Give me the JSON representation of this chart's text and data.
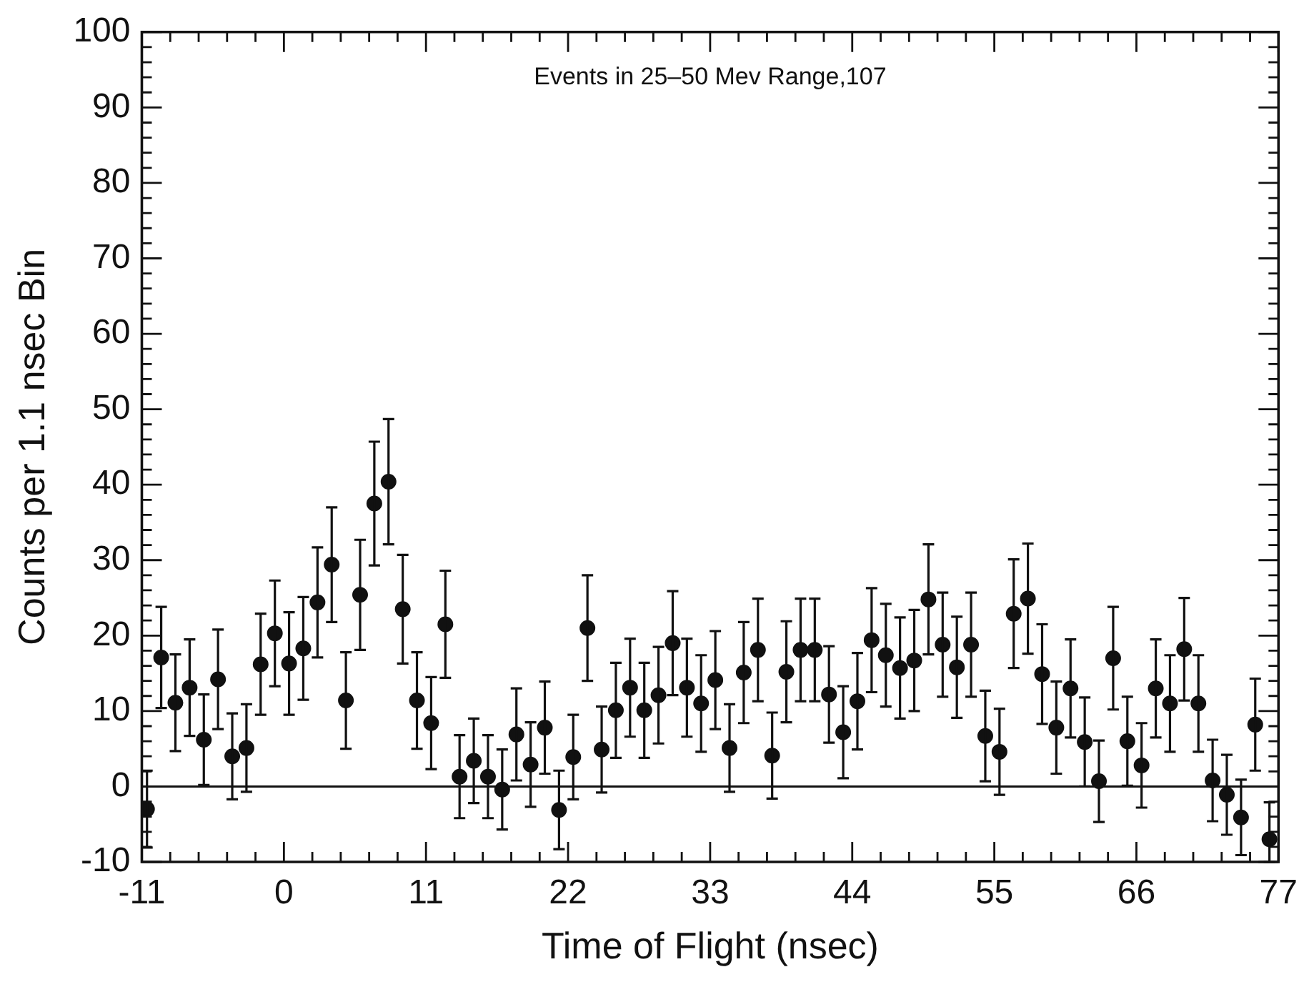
{
  "chart_data": {
    "type": "scatter",
    "title": "Events in 25–50 Mev Range,107",
    "xlabel": "Time of Flight (nsec)",
    "ylabel": "Counts per 1.1 nsec Bin",
    "x": [
      -10.6,
      -9.5,
      -8.4,
      -7.3,
      -6.2,
      -5.1,
      -4.0,
      -2.9,
      -1.8,
      -0.7,
      0.4,
      1.5,
      2.6,
      3.7,
      4.8,
      5.9,
      7.0,
      8.1,
      9.2,
      10.3,
      11.4,
      12.5,
      13.6,
      14.7,
      15.8,
      16.9,
      18.0,
      19.1,
      20.2,
      21.3,
      22.4,
      23.5,
      24.6,
      25.7,
      26.8,
      27.9,
      29.0,
      30.1,
      31.2,
      32.3,
      33.4,
      34.5,
      35.6,
      36.7,
      37.8,
      38.9,
      40.0,
      41.1,
      42.2,
      43.3,
      44.4,
      45.5,
      46.6,
      47.7,
      48.8,
      49.9,
      51.0,
      52.1,
      53.2,
      54.3,
      55.4,
      56.5,
      57.6,
      58.7,
      59.8,
      60.9,
      62.0,
      63.1,
      64.2,
      65.3,
      66.4,
      67.5,
      68.6,
      69.7,
      70.8,
      71.9,
      73.0,
      74.1,
      75.2,
      76.3
    ],
    "series": [
      {
        "color": "#111111",
        "values": [
          -3.0,
          17.1,
          11.1,
          13.1,
          6.2,
          14.2,
          4.0,
          5.1,
          16.2,
          20.3,
          16.3,
          18.3,
          24.4,
          29.4,
          11.4,
          25.4,
          37.5,
          40.4,
          23.5,
          11.4,
          8.4,
          21.5,
          1.3,
          3.4,
          1.3,
          -0.4,
          6.9,
          2.9,
          7.8,
          -3.1,
          3.9,
          21.0,
          4.9,
          10.1,
          13.1,
          10.1,
          12.1,
          19.0,
          13.1,
          11.0,
          14.1,
          5.1,
          15.1,
          18.1,
          4.1,
          15.2,
          18.1,
          18.1,
          12.2,
          7.2,
          11.3,
          19.4,
          17.4,
          15.7,
          16.7,
          24.8,
          18.8,
          15.8,
          18.8,
          6.7,
          4.6,
          22.9,
          24.9,
          14.9,
          7.8,
          13.0,
          5.9,
          0.7,
          17.0,
          6.0,
          2.8,
          13.0,
          11.0,
          18.2,
          11.0,
          0.8,
          -1.1,
          -4.1,
          8.2,
          -7.0
        ],
        "errors": [
          5.1,
          6.7,
          6.4,
          6.4,
          6.0,
          6.6,
          5.7,
          5.8,
          6.7,
          7.0,
          6.8,
          6.8,
          7.3,
          7.6,
          6.4,
          7.3,
          8.2,
          8.3,
          7.2,
          6.4,
          6.1,
          7.1,
          5.5,
          5.6,
          5.5,
          5.3,
          6.1,
          5.6,
          6.1,
          5.2,
          5.6,
          7.0,
          5.7,
          6.3,
          6.5,
          6.3,
          6.4,
          6.9,
          6.5,
          6.4,
          6.5,
          5.8,
          6.7,
          6.8,
          5.7,
          6.7,
          6.8,
          6.8,
          6.4,
          6.1,
          6.4,
          6.9,
          6.8,
          6.7,
          6.7,
          7.3,
          6.9,
          6.7,
          6.9,
          6.0,
          5.7,
          7.2,
          7.3,
          6.6,
          6.1,
          6.5,
          5.9,
          5.4,
          6.8,
          5.9,
          5.6,
          6.5,
          6.4,
          6.8,
          6.4,
          5.4,
          5.3,
          5.0,
          6.1,
          [
            -10,
            -2.1
          ]
        ]
      }
    ],
    "xlim": [
      -11,
      77
    ],
    "xticks": [
      -11,
      {
        "value": -8.8,
        "label": null
      },
      {
        "value": -6.6,
        "label": null
      },
      {
        "value": -4.4,
        "label": null
      },
      {
        "value": -2.2,
        "label": null
      },
      0,
      {
        "value": 2.2,
        "label": null
      },
      {
        "value": 4.4,
        "label": null
      },
      {
        "value": 6.6,
        "label": null
      },
      {
        "value": 8.8,
        "label": null
      },
      11,
      {
        "value": 13.2,
        "label": null
      },
      {
        "value": 15.4,
        "label": null
      },
      {
        "value": 17.6,
        "label": null
      },
      {
        "value": 19.8,
        "label": null
      },
      22,
      {
        "value": 24.2,
        "label": null
      },
      {
        "value": 26.4,
        "label": null
      },
      {
        "value": 28.6,
        "label": null
      },
      {
        "value": 30.8,
        "label": null
      },
      33,
      {
        "value": 35.2,
        "label": null
      },
      {
        "value": 37.4,
        "label": null
      },
      {
        "value": 39.6,
        "label": null
      },
      {
        "value": 41.8,
        "label": null
      },
      44,
      {
        "value": 46.2,
        "label": null
      },
      {
        "value": 48.4,
        "label": null
      },
      {
        "value": 50.6,
        "label": null
      },
      {
        "value": 52.8,
        "label": null
      },
      55,
      {
        "value": 57.2,
        "label": null
      },
      {
        "value": 59.4,
        "label": null
      },
      {
        "value": 61.6,
        "label": null
      },
      {
        "value": 63.8,
        "label": null
      },
      66,
      {
        "value": 68.2,
        "label": null
      },
      {
        "value": 70.4,
        "label": null
      },
      {
        "value": 72.6,
        "label": null
      },
      {
        "value": 74.8,
        "label": null
      },
      77
    ],
    "ylim": [
      -10,
      100
    ],
    "yticks": [
      -10,
      {
        "value": -8,
        "label": null
      },
      {
        "value": -6,
        "label": null
      },
      {
        "value": -4,
        "label": null
      },
      {
        "value": -2,
        "label": null
      },
      0,
      {
        "value": 2,
        "label": null
      },
      {
        "value": 4,
        "label": null
      },
      {
        "value": 6,
        "label": null
      },
      {
        "value": 8,
        "label": null
      },
      10,
      {
        "value": 12,
        "label": null
      },
      {
        "value": 14,
        "label": null
      },
      {
        "value": 16,
        "label": null
      },
      {
        "value": 18,
        "label": null
      },
      20,
      {
        "value": 22,
        "label": null
      },
      {
        "value": 24,
        "label": null
      },
      {
        "value": 26,
        "label": null
      },
      {
        "value": 28,
        "label": null
      },
      30,
      {
        "value": 32,
        "label": null
      },
      {
        "value": 34,
        "label": null
      },
      {
        "value": 36,
        "label": null
      },
      {
        "value": 38,
        "label": null
      },
      40,
      {
        "value": 42,
        "label": null
      },
      {
        "value": 44,
        "label": null
      },
      {
        "value": 46,
        "label": null
      },
      {
        "value": 48,
        "label": null
      },
      50,
      {
        "value": 52,
        "label": null
      },
      {
        "value": 54,
        "label": null
      },
      {
        "value": 56,
        "label": null
      },
      {
        "value": 58,
        "label": null
      },
      60,
      {
        "value": 62,
        "label": null
      },
      {
        "value": 64,
        "label": null
      },
      {
        "value": 66,
        "label": null
      },
      {
        "value": 68,
        "label": null
      },
      70,
      {
        "value": 72,
        "label": null
      },
      {
        "value": 74,
        "label": null
      },
      {
        "value": 76,
        "label": null
      },
      {
        "value": 78,
        "label": null
      },
      80,
      {
        "value": 82,
        "label": null
      },
      {
        "value": 84,
        "label": null
      },
      {
        "value": 86,
        "label": null
      },
      {
        "value": 88,
        "label": null
      },
      90,
      {
        "value": 92,
        "label": null
      },
      {
        "value": 94,
        "label": null
      },
      {
        "value": 96,
        "label": null
      },
      {
        "value": 98,
        "label": null
      },
      100
    ],
    "ref_lines": [
      {
        "axis": "y",
        "value": 0,
        "color": "#111111"
      }
    ],
    "grid": false,
    "legend": false,
    "marker": "circle"
  }
}
